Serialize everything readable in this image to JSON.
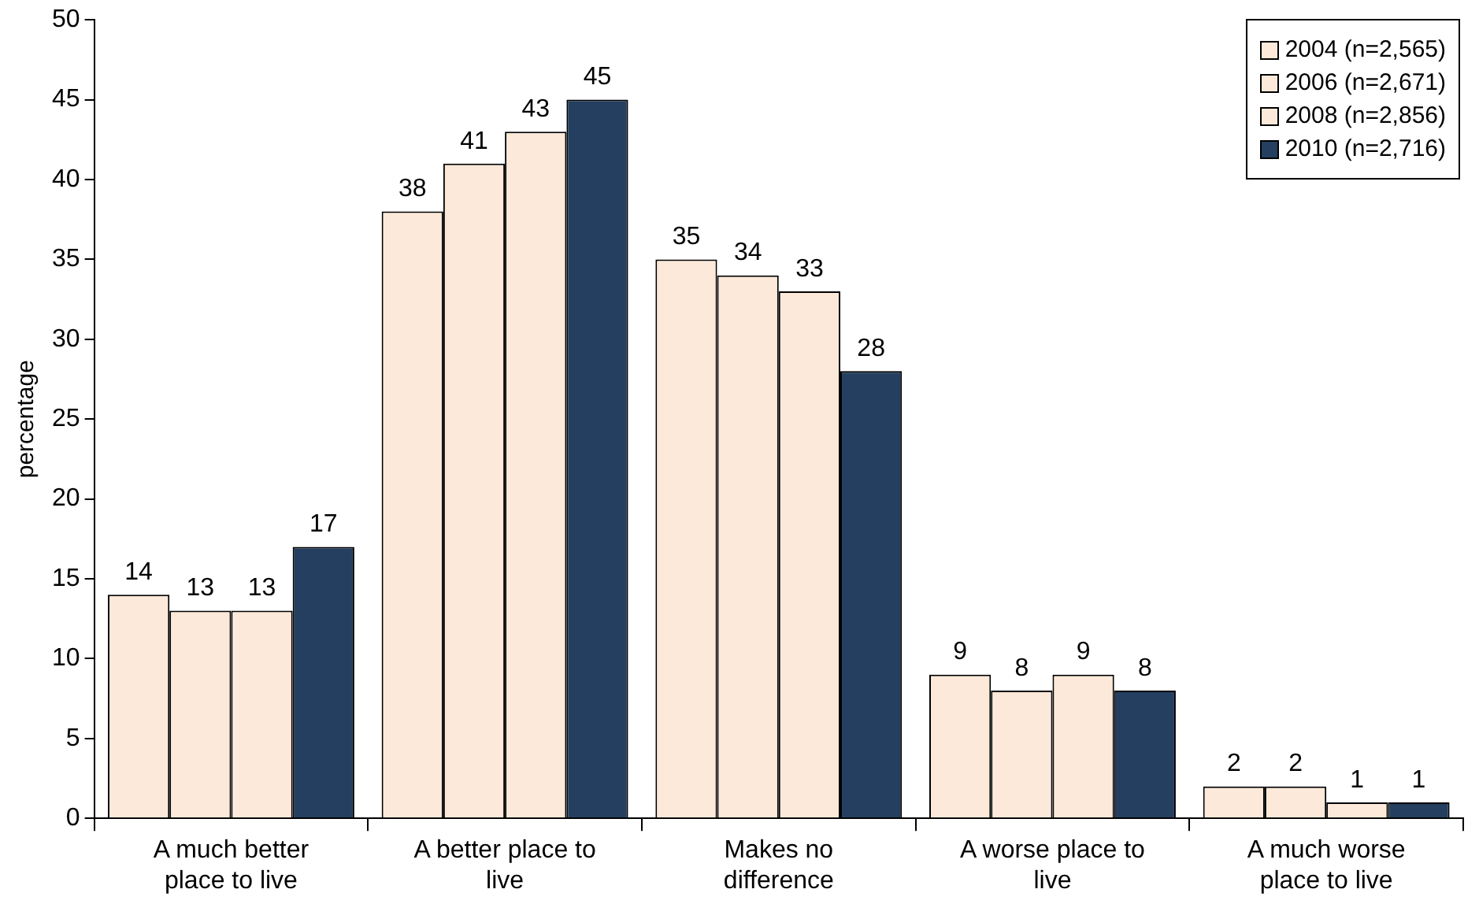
{
  "chart_data": {
    "type": "bar",
    "ylabel": "percentage",
    "categories": [
      "A much better place to live",
      "A better place to live",
      "Makes no difference",
      "A worse place to live",
      "A much worse place to live"
    ],
    "series": [
      {
        "name": "2004 (n=2,565)",
        "color": "#fde9d9",
        "values": [
          14,
          38,
          35,
          9,
          2
        ]
      },
      {
        "name": "2006 (n=2,671)",
        "color": "#fde9d9",
        "values": [
          13,
          41,
          34,
          8,
          2
        ]
      },
      {
        "name": "2008 (n=2,856)",
        "color": "#fde9d9",
        "values": [
          13,
          43,
          33,
          9,
          1
        ]
      },
      {
        "name": "2010 (n=2,716)",
        "color": "#243f60",
        "values": [
          17,
          45,
          28,
          8,
          1
        ]
      }
    ],
    "ylim": [
      0,
      50
    ],
    "yticks": [
      0,
      5,
      10,
      15,
      20,
      25,
      30,
      35,
      40,
      45,
      50
    ],
    "grid": false,
    "legend": "top right",
    "data_labels": true
  }
}
